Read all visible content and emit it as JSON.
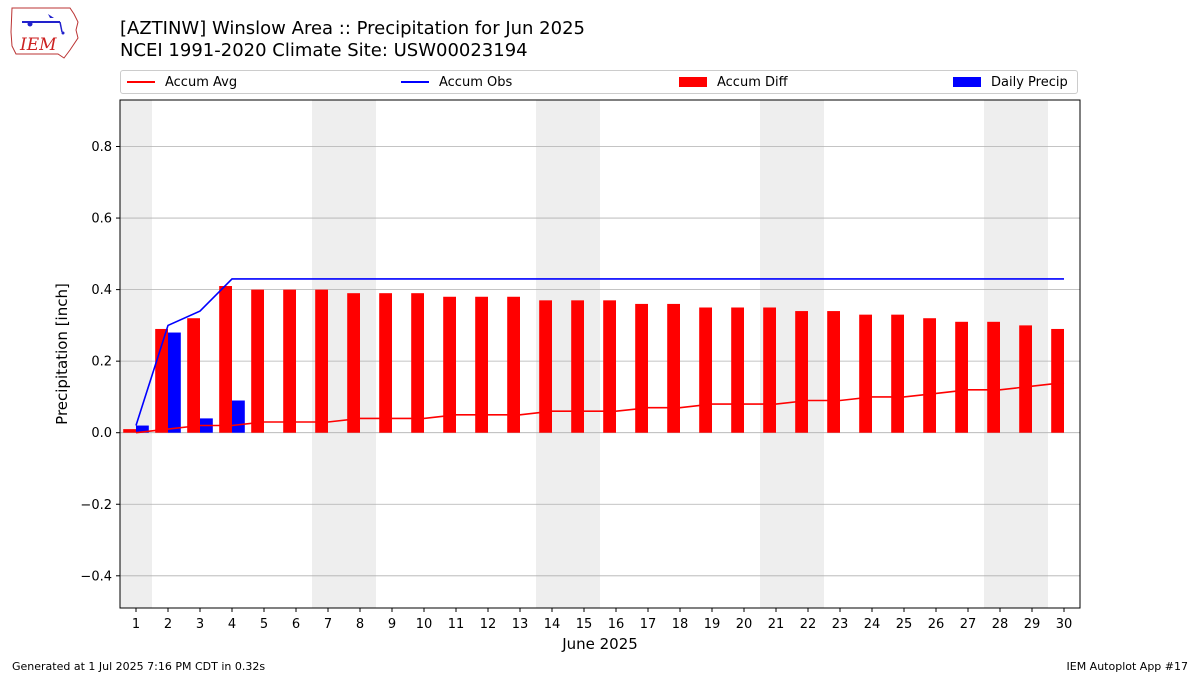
{
  "header": {
    "title_line1": "[AZTINW] Winslow Area :: Precipitation for Jun 2025",
    "title_line2": "NCEI 1991-2020 Climate Site: USW00023194"
  },
  "logo": {
    "text": "IEM",
    "icon": "iem-iowa-logo-icon"
  },
  "legend": {
    "placement": "top",
    "entries": [
      {
        "label": "Accum Avg",
        "kind": "line",
        "color": "#ff0000"
      },
      {
        "label": "Accum Obs",
        "kind": "line",
        "color": "#0000ff"
      },
      {
        "label": "Accum Diff",
        "kind": "bar",
        "color": "#ff0000"
      },
      {
        "label": "Daily Precip",
        "kind": "bar",
        "color": "#0000ff"
      }
    ]
  },
  "footer": {
    "left": "Generated at 1 Jul 2025 7:16 PM CDT in 0.32s",
    "right": "IEM Autoplot App #17"
  },
  "chart_data": {
    "type": "bar",
    "xlabel": "June 2025",
    "ylabel": "Precipitation [inch]",
    "x": [
      1,
      2,
      3,
      4,
      5,
      6,
      7,
      8,
      9,
      10,
      11,
      12,
      13,
      14,
      15,
      16,
      17,
      18,
      19,
      20,
      21,
      22,
      23,
      24,
      25,
      26,
      27,
      28,
      29,
      30
    ],
    "ylim": [
      -0.49,
      0.93
    ],
    "yticks": [
      -0.4,
      -0.2,
      0.0,
      0.2,
      0.4,
      0.6,
      0.8
    ],
    "ytick_labels": [
      "−0.4",
      "−0.2",
      "0.0",
      "0.2",
      "0.4",
      "0.6",
      "0.8"
    ],
    "grid": true,
    "weekend_days": [
      1,
      7,
      8,
      14,
      15,
      21,
      22,
      28,
      29
    ],
    "weekend_color": "#eeeeee",
    "series": [
      {
        "name": "Accum Avg",
        "kind": "line",
        "color": "#ff0000",
        "values": [
          0.0,
          0.01,
          0.02,
          0.02,
          0.03,
          0.03,
          0.03,
          0.04,
          0.04,
          0.04,
          0.05,
          0.05,
          0.05,
          0.06,
          0.06,
          0.06,
          0.07,
          0.07,
          0.08,
          0.08,
          0.08,
          0.09,
          0.09,
          0.1,
          0.1,
          0.11,
          0.12,
          0.12,
          0.13,
          0.14
        ]
      },
      {
        "name": "Accum Obs",
        "kind": "line",
        "color": "#0000ff",
        "values": [
          0.02,
          0.3,
          0.34,
          0.43,
          0.43,
          0.43,
          0.43,
          0.43,
          0.43,
          0.43,
          0.43,
          0.43,
          0.43,
          0.43,
          0.43,
          0.43,
          0.43,
          0.43,
          0.43,
          0.43,
          0.43,
          0.43,
          0.43,
          0.43,
          0.43,
          0.43,
          0.43,
          0.43,
          0.43,
          0.43
        ]
      },
      {
        "name": "Accum Diff",
        "kind": "bar",
        "color": "#ff0000",
        "values": [
          0.01,
          0.29,
          0.32,
          0.41,
          0.4,
          0.4,
          0.4,
          0.39,
          0.39,
          0.39,
          0.38,
          0.38,
          0.38,
          0.37,
          0.37,
          0.37,
          0.36,
          0.36,
          0.35,
          0.35,
          0.35,
          0.34,
          0.34,
          0.33,
          0.33,
          0.32,
          0.31,
          0.31,
          0.3,
          0.29
        ]
      },
      {
        "name": "Daily Precip",
        "kind": "bar",
        "color": "#0000ff",
        "values": [
          0.02,
          0.28,
          0.04,
          0.09,
          0,
          0,
          0,
          0,
          0,
          0,
          0,
          0,
          0,
          0,
          0,
          0,
          0,
          0,
          0,
          0,
          0,
          0,
          0,
          0,
          0,
          0,
          0,
          0,
          0,
          0
        ]
      }
    ]
  }
}
